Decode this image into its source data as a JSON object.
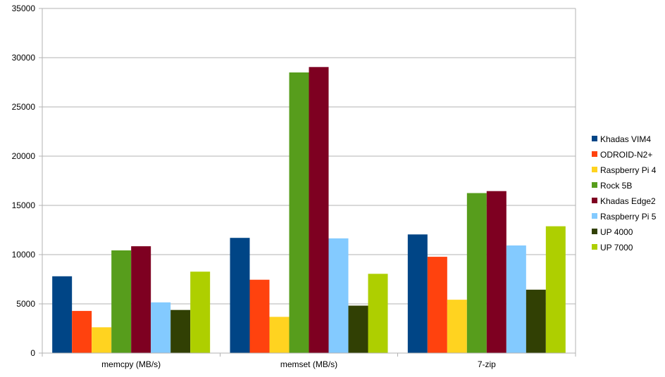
{
  "chart_data": {
    "type": "bar",
    "categories": [
      "memcpy (MB/s)",
      "memset (MB/s)",
      "7-zip"
    ],
    "series": [
      {
        "name": "Khadas VIM4",
        "color": "#004586",
        "values": [
          7800,
          11700,
          12050
        ]
      },
      {
        "name": "ODROID-N2+",
        "color": "#ff420e",
        "values": [
          4280,
          7450,
          9780
        ]
      },
      {
        "name": "Raspberry Pi 4",
        "color": "#ffd320",
        "values": [
          2620,
          3680,
          5420
        ]
      },
      {
        "name": "Rock 5B",
        "color": "#579d1c",
        "values": [
          10430,
          28500,
          16250
        ]
      },
      {
        "name": "Khadas Edge2",
        "color": "#7e0021",
        "values": [
          10850,
          29050,
          16450
        ]
      },
      {
        "name": "Raspberry Pi 5",
        "color": "#83caff",
        "values": [
          5150,
          11650,
          10930
        ]
      },
      {
        "name": "UP 4000",
        "color": "#314004",
        "values": [
          4380,
          4820,
          6440
        ]
      },
      {
        "name": "UP 7000",
        "color": "#aecf00",
        "values": [
          8270,
          8050,
          12880
        ]
      }
    ],
    "y_ticks": [
      "0",
      "5000",
      "10000",
      "15000",
      "20000",
      "25000",
      "30000",
      "35000"
    ],
    "ylim": [
      0,
      35000
    ],
    "grid": true,
    "legend_position": "right"
  }
}
